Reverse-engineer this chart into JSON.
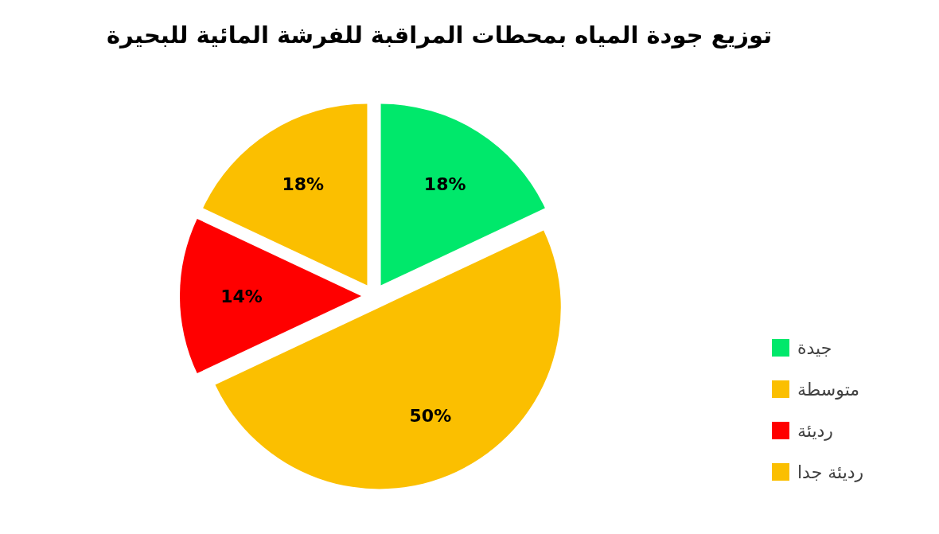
{
  "chart_data": {
    "type": "pie",
    "title": "توزيع جودة المياه بمحطات المراقبة للفرشة المائية للبحيرة",
    "categories": [
      "جيدة",
      "متوسطة",
      "رديئة",
      "رديئة جدا"
    ],
    "values": [
      18,
      50,
      14,
      18
    ],
    "colors": [
      "#00e86b",
      "#fbbf00",
      "#ff0000",
      "#fbbf00"
    ],
    "value_labels": [
      "18%",
      "50%",
      "14%",
      "18%"
    ],
    "legend": "right"
  }
}
